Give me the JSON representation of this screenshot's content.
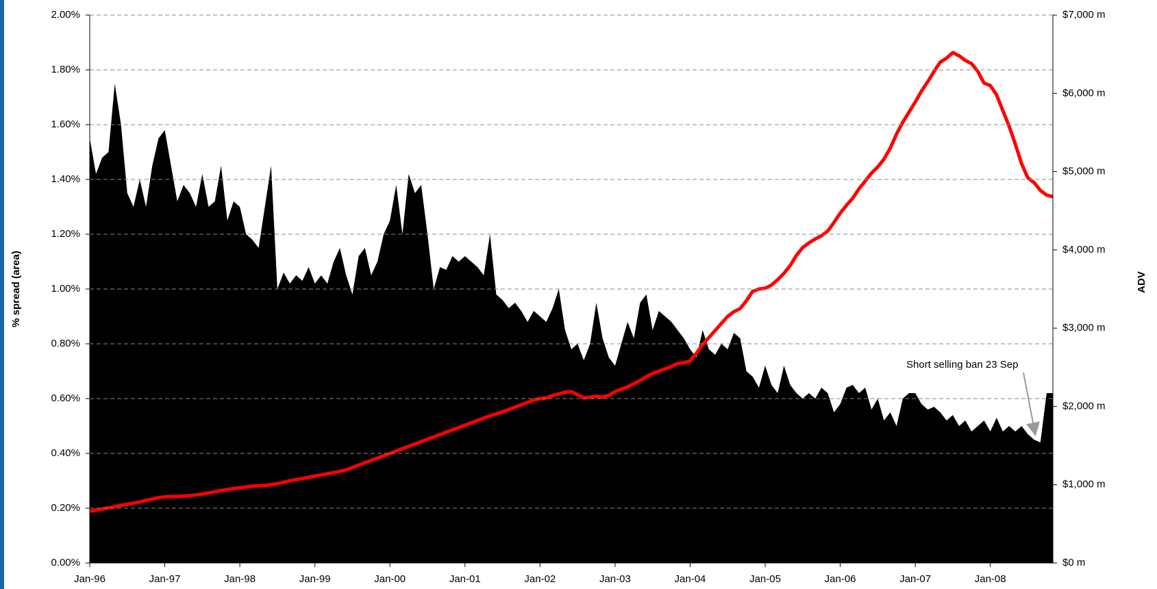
{
  "chart_data": {
    "type": "area",
    "y_label": "% spread (area)",
    "y2_label": "ADV",
    "annotation": "Short selling ban 23 Sep",
    "categories": [
      "Jan-96",
      null,
      null,
      null,
      null,
      null,
      null,
      null,
      null,
      null,
      null,
      null,
      "Jan-97",
      null,
      null,
      null,
      null,
      null,
      null,
      null,
      null,
      null,
      null,
      null,
      "Jan-98",
      null,
      null,
      null,
      null,
      null,
      null,
      null,
      null,
      null,
      null,
      null,
      "Jan-99",
      null,
      null,
      null,
      null,
      null,
      null,
      null,
      null,
      null,
      null,
      null,
      "Jan-00",
      null,
      null,
      null,
      null,
      null,
      null,
      null,
      null,
      null,
      null,
      null,
      "Jan-01",
      null,
      null,
      null,
      null,
      null,
      null,
      null,
      null,
      null,
      null,
      null,
      "Jan-02",
      null,
      null,
      null,
      null,
      null,
      null,
      null,
      null,
      null,
      null,
      null,
      "Jan-03",
      null,
      null,
      null,
      null,
      null,
      null,
      null,
      null,
      null,
      null,
      null,
      "Jan-04",
      null,
      null,
      null,
      null,
      null,
      null,
      null,
      null,
      null,
      null,
      null,
      "Jan-05",
      null,
      null,
      null,
      null,
      null,
      null,
      null,
      null,
      null,
      null,
      null,
      "Jan-06",
      null,
      null,
      null,
      null,
      null,
      null,
      null,
      null,
      null,
      null,
      null,
      "Jan-07",
      null,
      null,
      null,
      null,
      null,
      null,
      null,
      null,
      null,
      null,
      null,
      "Jan-08",
      null,
      null,
      null,
      null,
      null,
      null,
      null,
      null,
      null,
      null
    ],
    "series": [
      {
        "type": "area",
        "color": "#000000",
        "values": [
          1.55,
          1.42,
          1.48,
          1.5,
          1.75,
          1.6,
          1.35,
          1.3,
          1.4,
          1.3,
          1.45,
          1.55,
          1.58,
          1.45,
          1.32,
          1.38,
          1.35,
          1.3,
          1.42,
          1.3,
          1.32,
          1.45,
          1.25,
          1.32,
          1.3,
          1.2,
          1.18,
          1.15,
          1.3,
          1.45,
          1.0,
          1.06,
          1.02,
          1.05,
          1.03,
          1.08,
          1.02,
          1.05,
          1.02,
          1.1,
          1.15,
          1.05,
          0.98,
          1.12,
          1.15,
          1.05,
          1.1,
          1.2,
          1.25,
          1.38,
          1.2,
          1.42,
          1.35,
          1.38,
          1.2,
          1.0,
          1.08,
          1.07,
          1.12,
          1.1,
          1.12,
          1.1,
          1.08,
          1.05,
          1.2,
          0.98,
          0.96,
          0.93,
          0.95,
          0.92,
          0.88,
          0.92,
          0.9,
          0.88,
          0.93,
          1.0,
          0.85,
          0.78,
          0.8,
          0.74,
          0.8,
          0.95,
          0.82,
          0.75,
          0.72,
          0.8,
          0.88,
          0.82,
          0.95,
          0.98,
          0.85,
          0.92,
          0.9,
          0.88,
          0.85,
          0.82,
          0.78,
          0.75,
          0.85,
          0.78,
          0.76,
          0.8,
          0.78,
          0.84,
          0.82,
          0.7,
          0.68,
          0.64,
          0.72,
          0.65,
          0.62,
          0.72,
          0.65,
          0.62,
          0.6,
          0.62,
          0.6,
          0.64,
          0.62,
          0.55,
          0.58,
          0.64,
          0.65,
          0.62,
          0.64,
          0.56,
          0.6,
          0.52,
          0.55,
          0.5,
          0.6,
          0.62,
          0.62,
          0.58,
          0.56,
          0.57,
          0.55,
          0.52,
          0.54,
          0.5,
          0.52,
          0.48,
          0.5,
          0.52,
          0.48,
          0.53,
          0.48,
          0.5,
          0.48,
          0.5,
          0.47,
          0.45,
          0.44,
          0.62,
          0.62
        ]
      },
      {
        "type": "line",
        "color": "#ff0000",
        "axis": "y2",
        "values": [
          660,
          675,
          690,
          705,
          720,
          735,
          750,
          765,
          780,
          800,
          815,
          835,
          845,
          848,
          850,
          855,
          860,
          870,
          880,
          895,
          910,
          925,
          940,
          950,
          960,
          970,
          980,
          985,
          990,
          1000,
          1015,
          1030,
          1050,
          1065,
          1080,
          1095,
          1110,
          1125,
          1140,
          1155,
          1170,
          1190,
          1220,
          1250,
          1280,
          1310,
          1340,
          1370,
          1400,
          1430,
          1460,
          1490,
          1520,
          1550,
          1580,
          1610,
          1640,
          1670,
          1700,
          1730,
          1760,
          1790,
          1820,
          1850,
          1880,
          1905,
          1930,
          1960,
          1990,
          2020,
          2050,
          2080,
          2100,
          2110,
          2140,
          2160,
          2180,
          2190,
          2150,
          2110,
          2120,
          2130,
          2120,
          2140,
          2190,
          2220,
          2250,
          2290,
          2330,
          2380,
          2420,
          2450,
          2480,
          2510,
          2550,
          2560,
          2580,
          2680,
          2790,
          2880,
          2970,
          3060,
          3150,
          3210,
          3250,
          3350,
          3470,
          3500,
          3510,
          3550,
          3620,
          3700,
          3800,
          3930,
          4030,
          4090,
          4140,
          4180,
          4240,
          4350,
          4470,
          4570,
          4660,
          4780,
          4880,
          4980,
          5060,
          5160,
          5300,
          5480,
          5630,
          5760,
          5890,
          6030,
          6150,
          6280,
          6400,
          6450,
          6520,
          6480,
          6420,
          6380,
          6280,
          6130,
          6100,
          5980,
          5780,
          5580,
          5350,
          5100,
          4920,
          4860,
          4760,
          4700,
          4680
        ]
      }
    ],
    "ylim": [
      0,
      2
    ],
    "yticks": [
      {
        "value": 0,
        "label": "0.00%"
      },
      {
        "value": 0.2,
        "label": "0.20%"
      },
      {
        "value": 0.4,
        "label": "0.40%"
      },
      {
        "value": 0.6,
        "label": "0.60%"
      },
      {
        "value": 0.8,
        "label": "0.80%"
      },
      {
        "value": 1,
        "label": "1.00%"
      },
      {
        "value": 1.2,
        "label": "1.20%"
      },
      {
        "value": 1.4,
        "label": "1.40%"
      },
      {
        "value": 1.6,
        "label": "1.60%"
      },
      {
        "value": 1.8,
        "label": "1.80%"
      },
      {
        "value": 2,
        "label": "2.00%"
      }
    ],
    "y2lim": [
      0,
      7000
    ],
    "y2ticks": [
      {
        "value": 0,
        "label": "$0 m"
      },
      {
        "value": 1000,
        "label": "$1,000 m"
      },
      {
        "value": 2000,
        "label": "$2,000 m"
      },
      {
        "value": 3000,
        "label": "$3,000 m"
      },
      {
        "value": 4000,
        "label": "$4,000 m"
      },
      {
        "value": 5000,
        "label": "$5,000 m"
      },
      {
        "value": 6000,
        "label": "$6,000 m"
      },
      {
        "value": 7000,
        "label": "$7,000 m"
      }
    ],
    "grid": true
  }
}
